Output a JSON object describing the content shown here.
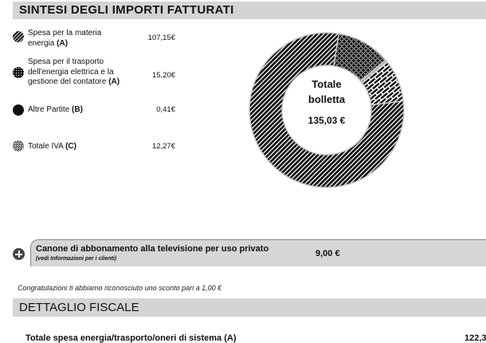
{
  "sintesi": {
    "title": "SINTESI DEGLI IMPORTI FATTURATI",
    "legend": [
      {
        "label": "Spesa per la materia energia",
        "tag": "(A)",
        "value": "107,15€",
        "pattern": "diagonal-hatch"
      },
      {
        "label": "Spesa per il trasporto dell'energia elettrica e la gestione del contatore",
        "tag": "(A)",
        "value": "15,20€",
        "pattern": "dots"
      },
      {
        "label": "Altre Partite",
        "tag": "(B)",
        "value": "0,41€",
        "pattern": "solid"
      },
      {
        "label": "Totale IVA",
        "tag": "(C)",
        "value": "12,27€",
        "pattern": "brick"
      }
    ],
    "donut": {
      "center_line1": "Totale",
      "center_line2": "bolletta",
      "center_amount": "135,03 €"
    }
  },
  "chart_data": {
    "type": "pie",
    "variant": "donut",
    "title": "Totale bolletta 135,03 €",
    "categories": [
      "Spesa per la materia energia (A)",
      "Spesa per il trasporto dell'energia elettrica e la gestione del contatore (A)",
      "Altre Partite (B)",
      "Totale IVA (C)"
    ],
    "values": [
      107.15,
      15.2,
      0.41,
      12.27
    ],
    "unit": "€",
    "total": 135.03,
    "legend_position": "left"
  },
  "canone": {
    "title": "Canone di abbonamento alla televisione per uso privato",
    "subtitle": "(vedi Informazioni per i clienti)",
    "amount": "9,00 €"
  },
  "note": "Congratulazioni ti abbiamo riconosciuto uno sconto pari a 1,00 €",
  "dettaglio": {
    "title": "DETTAGLIO FISCALE",
    "rows": [
      {
        "label": "Totale spesa energia/trasporto/oneri di sistema (A)",
        "value": "122,3"
      }
    ]
  }
}
